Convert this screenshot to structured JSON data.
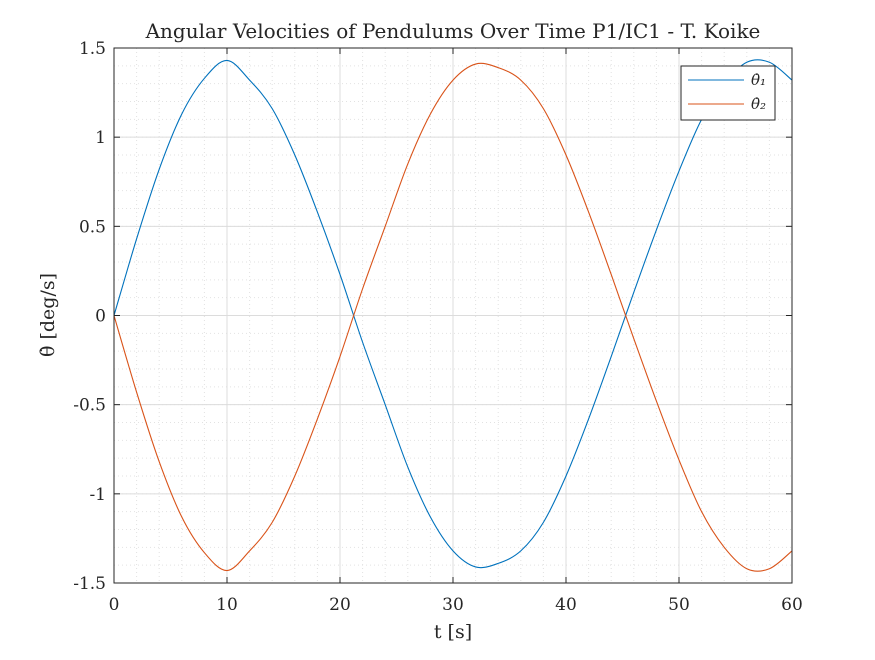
{
  "chart_data": {
    "type": "line",
    "title": "Angular Velocities of Pendulums Over Time P1/IC1 - T. Koike",
    "xlabel": "t [s]",
    "ylabel": "θ̇ [deg/s]",
    "xlim": [
      0,
      60
    ],
    "ylim": [
      -1.5,
      1.5
    ],
    "xticks": [
      0,
      10,
      20,
      30,
      40,
      50,
      60
    ],
    "xtick_labels": [
      "0",
      "10",
      "20",
      "30",
      "40",
      "50",
      "60"
    ],
    "yticks": [
      -1.5,
      -1,
      -0.5,
      0,
      0.5,
      1,
      1.5
    ],
    "ytick_labels": [
      "-1.5",
      "-1",
      "-0.5",
      "0",
      "0.5",
      "1",
      "1.5"
    ],
    "grid": true,
    "minor_grid": true,
    "legend_position": "top-right",
    "series": [
      {
        "name": "θ̇₁",
        "color": "#0072BD",
        "x": [
          0,
          2,
          4,
          6,
          8,
          10,
          12,
          14,
          16,
          18,
          20,
          22,
          24,
          26,
          28,
          30,
          32,
          34,
          36,
          38,
          40,
          42,
          44,
          46,
          48,
          50,
          52,
          54,
          56,
          58,
          60
        ],
        "y": [
          0,
          0.43,
          0.82,
          1.13,
          1.33,
          1.43,
          1.32,
          1.16,
          0.9,
          0.58,
          0.23,
          -0.15,
          -0.5,
          -0.85,
          -1.13,
          -1.32,
          -1.41,
          -1.39,
          -1.32,
          -1.16,
          -0.9,
          -0.58,
          -0.23,
          0.13,
          0.48,
          0.81,
          1.1,
          1.3,
          1.42,
          1.42,
          1.32
        ]
      },
      {
        "name": "θ̇₂",
        "color": "#D95319",
        "x": [
          0,
          2,
          4,
          6,
          8,
          10,
          12,
          14,
          16,
          18,
          20,
          22,
          24,
          26,
          28,
          30,
          32,
          34,
          36,
          38,
          40,
          42,
          44,
          46,
          48,
          50,
          52,
          54,
          56,
          58,
          60
        ],
        "y": [
          0,
          -0.43,
          -0.82,
          -1.13,
          -1.33,
          -1.43,
          -1.32,
          -1.16,
          -0.9,
          -0.58,
          -0.23,
          0.15,
          0.5,
          0.85,
          1.13,
          1.32,
          1.41,
          1.39,
          1.32,
          1.16,
          0.9,
          0.58,
          0.23,
          -0.13,
          -0.48,
          -0.81,
          -1.1,
          -1.3,
          -1.42,
          -1.42,
          -1.32
        ]
      }
    ]
  }
}
